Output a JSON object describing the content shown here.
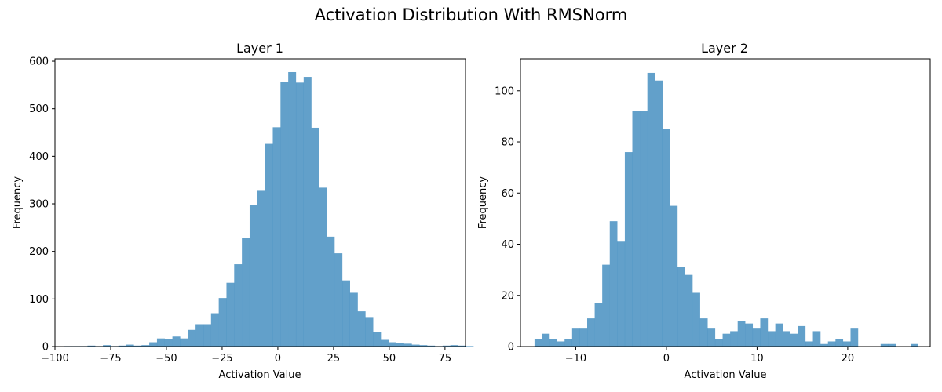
{
  "figure": {
    "title": "Activation Distribution With RMSNorm"
  },
  "chart_data": [
    {
      "type": "bar",
      "title": "Layer 1",
      "xlabel": "Activation Value",
      "ylabel": "Frequency",
      "xlim": [
        -100.0,
        84.2
      ],
      "ylim": [
        0,
        605
      ],
      "xticks": [
        -100,
        -75,
        -50,
        -25,
        0,
        25,
        50,
        75
      ],
      "xtick_labels": [
        "−100",
        "−75",
        "−50",
        "−25",
        "0",
        "25",
        "50",
        "75"
      ],
      "yticks": [
        0,
        100,
        200,
        300,
        400,
        500,
        600
      ],
      "ytick_labels": [
        "0",
        "100",
        "200",
        "300",
        "400",
        "500",
        "600"
      ],
      "bin_start": -95.8,
      "bin_width": 3.464,
      "values": [
        1,
        1,
        1,
        2,
        1,
        3,
        1,
        2,
        4,
        2,
        3,
        9,
        17,
        15,
        21,
        17,
        35,
        47,
        47,
        70,
        102,
        134,
        173,
        228,
        297,
        329,
        426,
        461,
        557,
        577,
        555,
        567,
        460,
        334,
        231,
        196,
        139,
        113,
        74,
        62,
        30,
        14,
        9,
        8,
        6,
        4,
        3,
        2,
        1,
        2,
        3,
        2,
        1
      ],
      "bar_color": "#1f77b4",
      "grid": false
    },
    {
      "type": "bar",
      "title": "Layer 2",
      "xlabel": "Activation Value",
      "ylabel": "Frequency",
      "xlim": [
        -16.1,
        29.1
      ],
      "ylim": [
        0,
        112.5
      ],
      "xticks": [
        -10,
        0,
        10,
        20
      ],
      "xtick_labels": [
        "−10",
        "0",
        "10",
        "20"
      ],
      "yticks": [
        0,
        20,
        40,
        60,
        80,
        100
      ],
      "ytick_labels": [
        "0",
        "20",
        "40",
        "60",
        "80",
        "100"
      ],
      "bin_start": -14.55,
      "bin_width": 0.83,
      "values": [
        3,
        5,
        3,
        2,
        3,
        7,
        7,
        11,
        17,
        32,
        49,
        41,
        76,
        92,
        92,
        107,
        104,
        85,
        55,
        31,
        28,
        21,
        11,
        7,
        3,
        5,
        6,
        10,
        9,
        7,
        11,
        6,
        9,
        6,
        5,
        8,
        2,
        6,
        1,
        2,
        3,
        2,
        7,
        0,
        0,
        0,
        1,
        1,
        0,
        0,
        1
      ],
      "bar_color": "#1f77b4",
      "grid": false
    }
  ]
}
